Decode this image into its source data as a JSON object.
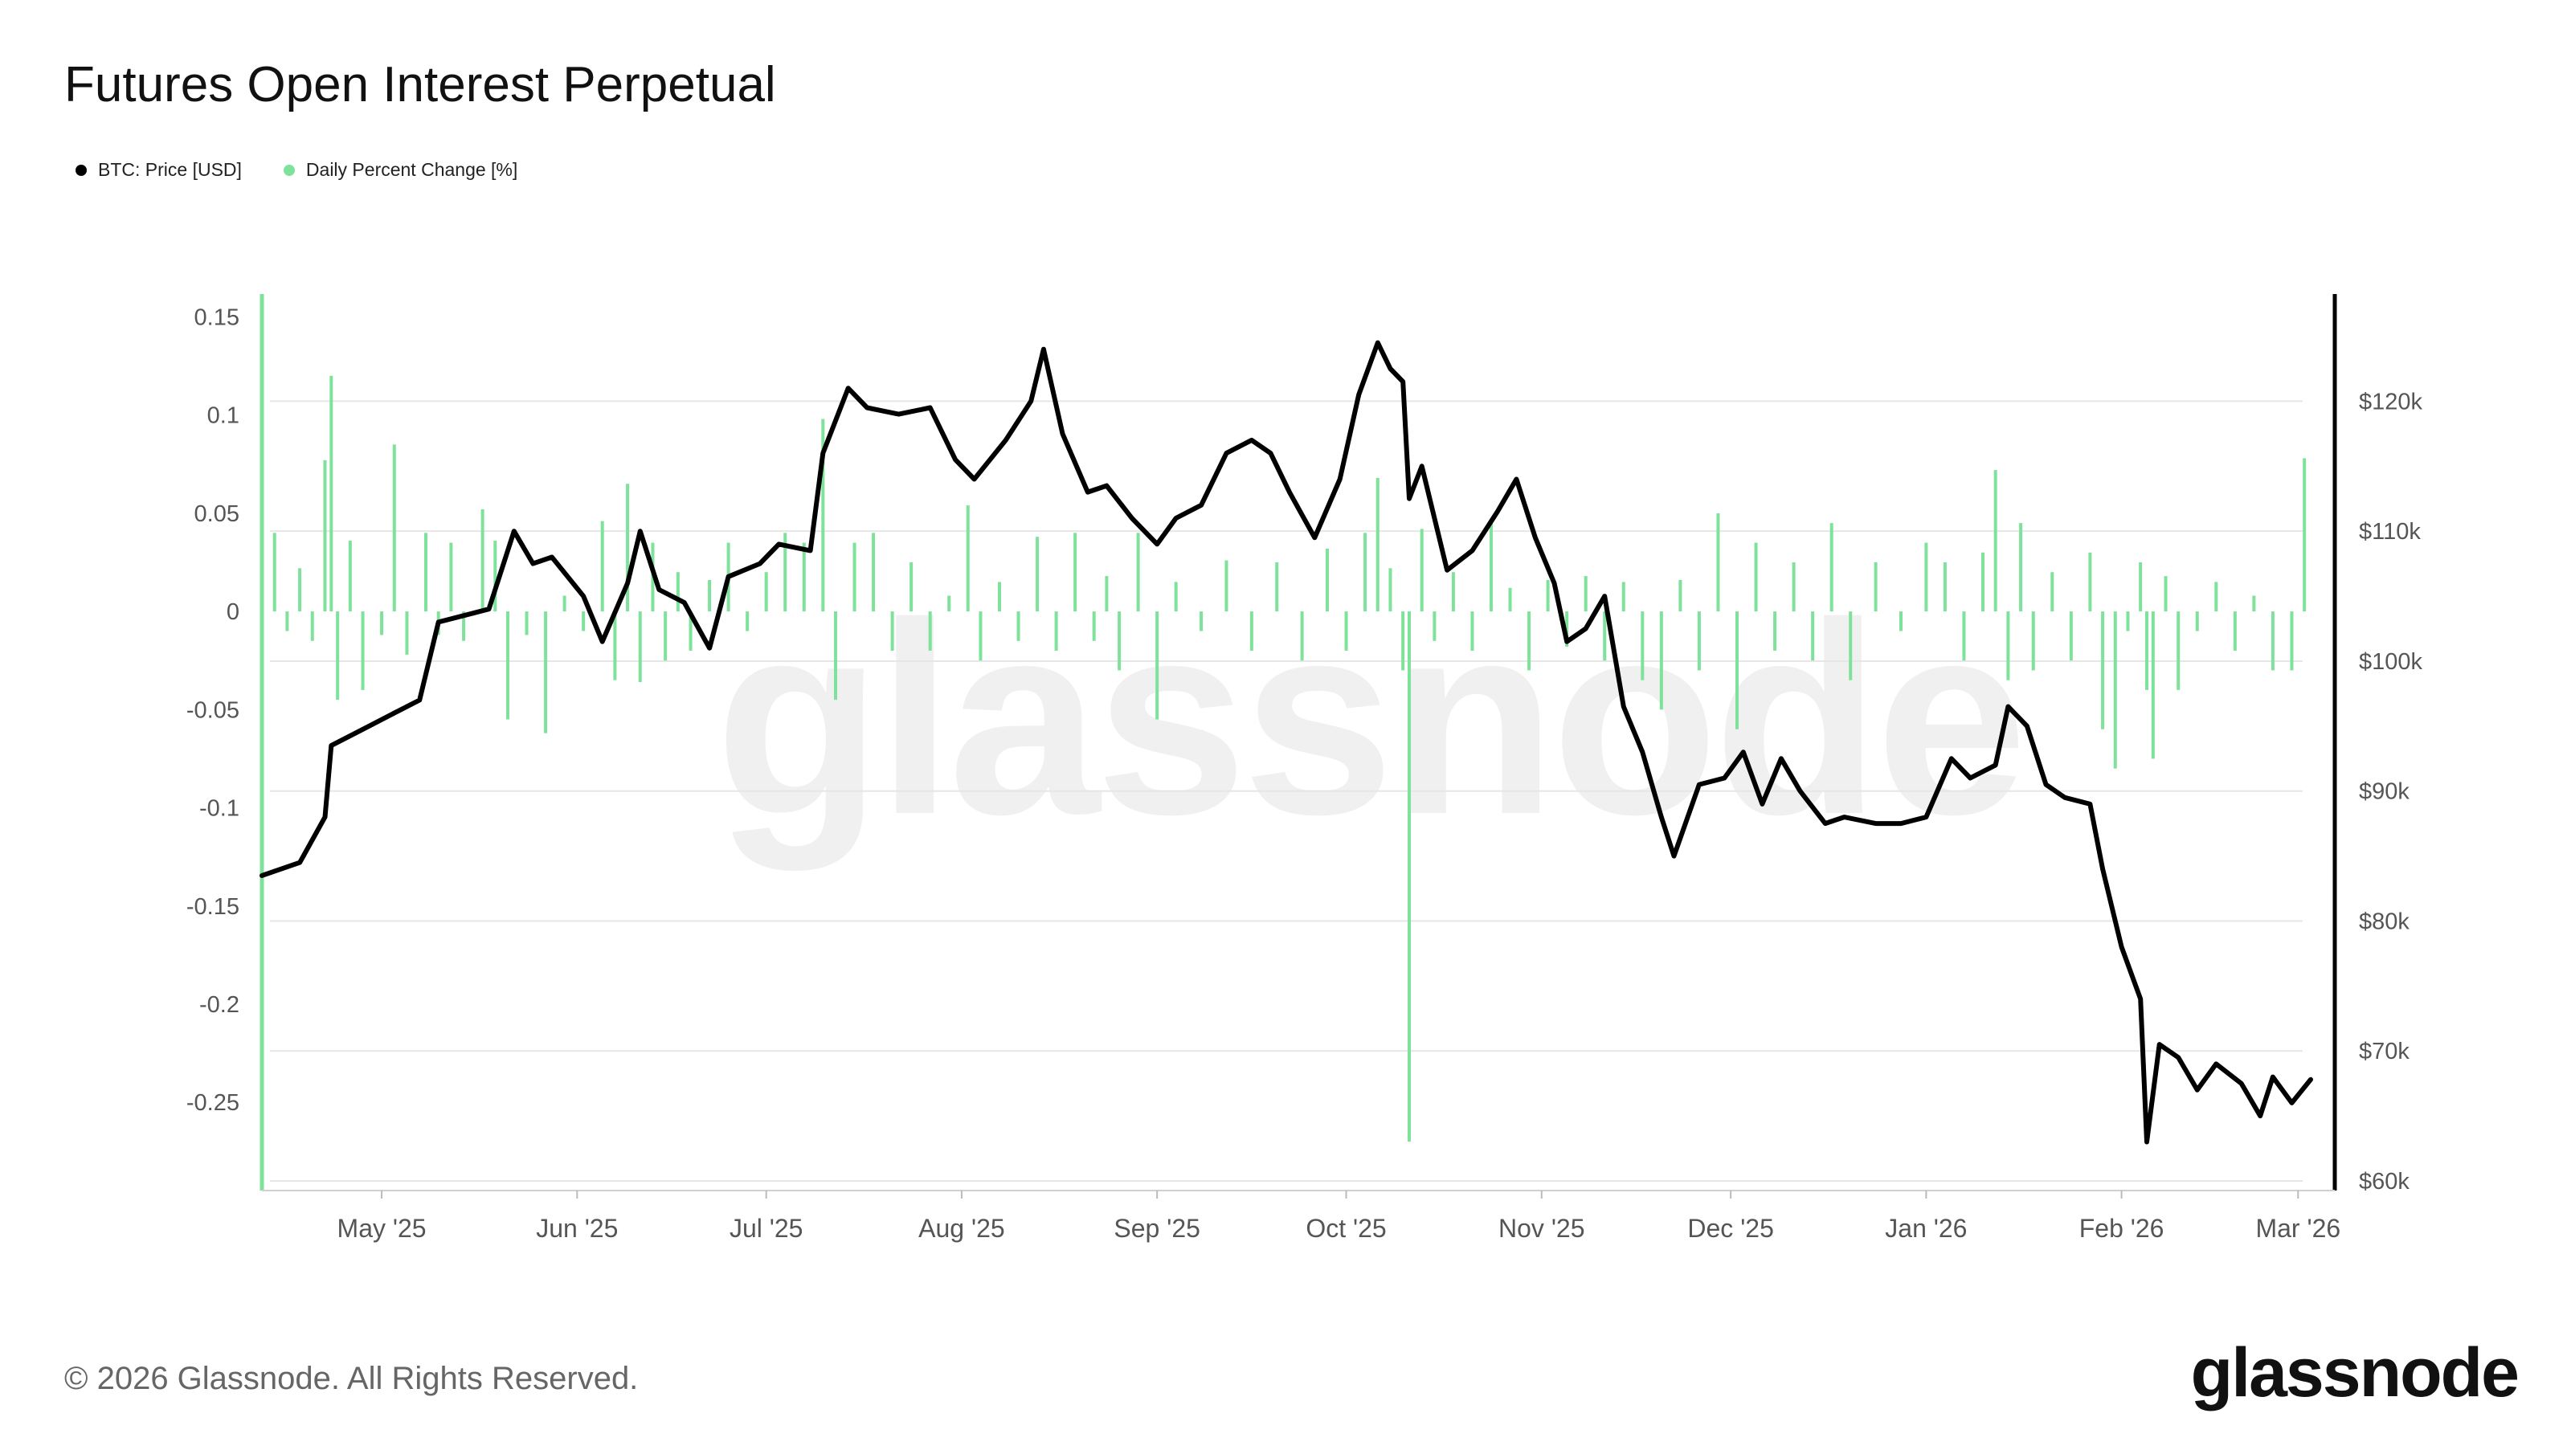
{
  "title": "Futures Open Interest Perpetual",
  "legend": [
    {
      "label": "BTC: Price [USD]",
      "color": "#000000"
    },
    {
      "label": "Daily Percent Change [%]",
      "color": "#7ee29a"
    }
  ],
  "footer": "© 2026 Glassnode. All Rights Reserved.",
  "watermark": "glassnode",
  "brand": "glassnode",
  "chart_data": {
    "type": "bar+line",
    "x_range": [
      "2025-04-12",
      "2026-03-03"
    ],
    "left_axis": {
      "ticks": [
        0.15,
        0.1,
        0.05,
        0,
        -0.05,
        -0.1,
        -0.15,
        -0.2,
        -0.25
      ],
      "tick_labels": [
        "0.15",
        "0.1",
        "0.05",
        "0",
        "-0.05",
        "-0.1",
        "-0.15",
        "-0.2",
        "-0.25"
      ],
      "ylim": [
        -0.29,
        0.16
      ]
    },
    "right_axis": {
      "ticks": [
        120000,
        110000,
        100000,
        90000,
        80000,
        70000,
        60000
      ],
      "tick_labels": [
        "$120k",
        "$110k",
        "$100k",
        "$90k",
        "$80k",
        "$70k",
        "$60k"
      ],
      "ylim": [
        60000,
        128000
      ]
    },
    "x_ticks": [
      {
        "date": "2025-05-01",
        "label": "May '25"
      },
      {
        "date": "2025-06-01",
        "label": "Jun '25"
      },
      {
        "date": "2025-07-01",
        "label": "Jul '25"
      },
      {
        "date": "2025-08-01",
        "label": "Aug '25"
      },
      {
        "date": "2025-09-01",
        "label": "Sep '25"
      },
      {
        "date": "2025-10-01",
        "label": "Oct '25"
      },
      {
        "date": "2025-11-01",
        "label": "Nov '25"
      },
      {
        "date": "2025-12-01",
        "label": "Dec '25"
      },
      {
        "date": "2026-01-01",
        "label": "Jan '26"
      },
      {
        "date": "2026-02-01",
        "label": "Feb '26"
      },
      {
        "date": "2026-03-01",
        "label": "Mar '26"
      }
    ],
    "series": [
      {
        "name": "BTC: Price [USD]",
        "color": "#000000",
        "points": [
          [
            "2025-04-12",
            83500
          ],
          [
            "2025-04-18",
            84500
          ],
          [
            "2025-04-22",
            88000
          ],
          [
            "2025-04-23",
            93500
          ],
          [
            "2025-04-27",
            94500
          ],
          [
            "2025-05-03",
            96000
          ],
          [
            "2025-05-07",
            97000
          ],
          [
            "2025-05-10",
            103000
          ],
          [
            "2025-05-14",
            103500
          ],
          [
            "2025-05-18",
            104000
          ],
          [
            "2025-05-22",
            110000
          ],
          [
            "2025-05-25",
            107500
          ],
          [
            "2025-05-28",
            108000
          ],
          [
            "2025-06-02",
            105000
          ],
          [
            "2025-06-05",
            101500
          ],
          [
            "2025-06-09",
            106000
          ],
          [
            "2025-06-11",
            110000
          ],
          [
            "2025-06-14",
            105500
          ],
          [
            "2025-06-18",
            104500
          ],
          [
            "2025-06-22",
            101000
          ],
          [
            "2025-06-25",
            106500
          ],
          [
            "2025-06-30",
            107500
          ],
          [
            "2025-07-03",
            109000
          ],
          [
            "2025-07-08",
            108500
          ],
          [
            "2025-07-10",
            116000
          ],
          [
            "2025-07-14",
            121000
          ],
          [
            "2025-07-17",
            119500
          ],
          [
            "2025-07-22",
            119000
          ],
          [
            "2025-07-27",
            119500
          ],
          [
            "2025-07-31",
            115500
          ],
          [
            "2025-08-03",
            114000
          ],
          [
            "2025-08-08",
            117000
          ],
          [
            "2025-08-12",
            120000
          ],
          [
            "2025-08-14",
            124000
          ],
          [
            "2025-08-17",
            117500
          ],
          [
            "2025-08-21",
            113000
          ],
          [
            "2025-08-24",
            113500
          ],
          [
            "2025-08-28",
            111000
          ],
          [
            "2025-09-01",
            109000
          ],
          [
            "2025-09-04",
            111000
          ],
          [
            "2025-09-08",
            112000
          ],
          [
            "2025-09-12",
            116000
          ],
          [
            "2025-09-16",
            117000
          ],
          [
            "2025-09-19",
            116000
          ],
          [
            "2025-09-22",
            113000
          ],
          [
            "2025-09-26",
            109500
          ],
          [
            "2025-09-30",
            114000
          ],
          [
            "2025-10-03",
            120500
          ],
          [
            "2025-10-06",
            124500
          ],
          [
            "2025-10-08",
            122500
          ],
          [
            "2025-10-10",
            121500
          ],
          [
            "2025-10-11",
            112500
          ],
          [
            "2025-10-13",
            115000
          ],
          [
            "2025-10-17",
            107000
          ],
          [
            "2025-10-21",
            108500
          ],
          [
            "2025-10-25",
            111500
          ],
          [
            "2025-10-28",
            114000
          ],
          [
            "2025-10-31",
            109500
          ],
          [
            "2025-11-03",
            106000
          ],
          [
            "2025-11-05",
            101500
          ],
          [
            "2025-11-08",
            102500
          ],
          [
            "2025-11-11",
            105000
          ],
          [
            "2025-11-14",
            96500
          ],
          [
            "2025-11-17",
            93000
          ],
          [
            "2025-11-20",
            88000
          ],
          [
            "2025-11-22",
            85000
          ],
          [
            "2025-11-26",
            90500
          ],
          [
            "2025-11-30",
            91000
          ],
          [
            "2025-12-03",
            93000
          ],
          [
            "2025-12-06",
            89000
          ],
          [
            "2025-12-09",
            92500
          ],
          [
            "2025-12-12",
            90000
          ],
          [
            "2025-12-16",
            87500
          ],
          [
            "2025-12-19",
            88000
          ],
          [
            "2025-12-24",
            87500
          ],
          [
            "2025-12-28",
            87500
          ],
          [
            "2026-01-01",
            88000
          ],
          [
            "2026-01-05",
            92500
          ],
          [
            "2026-01-08",
            91000
          ],
          [
            "2026-01-12",
            92000
          ],
          [
            "2026-01-14",
            96500
          ],
          [
            "2026-01-17",
            95000
          ],
          [
            "2026-01-20",
            90500
          ],
          [
            "2026-01-23",
            89500
          ],
          [
            "2026-01-27",
            89000
          ],
          [
            "2026-01-29",
            84000
          ],
          [
            "2026-02-01",
            78000
          ],
          [
            "2026-02-04",
            74000
          ],
          [
            "2026-02-05",
            63000
          ],
          [
            "2026-02-07",
            70500
          ],
          [
            "2026-02-10",
            69500
          ],
          [
            "2026-02-13",
            67000
          ],
          [
            "2026-02-16",
            69000
          ],
          [
            "2026-02-20",
            67500
          ],
          [
            "2026-02-23",
            65000
          ],
          [
            "2026-02-25",
            68000
          ],
          [
            "2026-02-28",
            66000
          ],
          [
            "2026-03-03",
            67800
          ]
        ]
      },
      {
        "name": "Daily Percent Change [%]",
        "color": "#7ee29a",
        "points": [
          [
            "2025-04-12",
            0.136
          ],
          [
            "2025-04-14",
            0.04
          ],
          [
            "2025-04-16",
            -0.01
          ],
          [
            "2025-04-18",
            0.022
          ],
          [
            "2025-04-20",
            -0.015
          ],
          [
            "2025-04-22",
            0.077
          ],
          [
            "2025-04-23",
            0.12
          ],
          [
            "2025-04-24",
            -0.045
          ],
          [
            "2025-04-26",
            0.036
          ],
          [
            "2025-04-28",
            -0.04
          ],
          [
            "2025-05-01",
            -0.012
          ],
          [
            "2025-05-03",
            0.085
          ],
          [
            "2025-05-05",
            -0.022
          ],
          [
            "2025-05-08",
            0.04
          ],
          [
            "2025-05-10",
            -0.012
          ],
          [
            "2025-05-12",
            0.035
          ],
          [
            "2025-05-14",
            -0.015
          ],
          [
            "2025-05-17",
            0.052
          ],
          [
            "2025-05-19",
            0.036
          ],
          [
            "2025-05-21",
            -0.055
          ],
          [
            "2025-05-24",
            -0.012
          ],
          [
            "2025-05-27",
            -0.062
          ],
          [
            "2025-05-30",
            0.008
          ],
          [
            "2025-06-02",
            -0.01
          ],
          [
            "2025-06-05",
            0.046
          ],
          [
            "2025-06-07",
            -0.035
          ],
          [
            "2025-06-09",
            0.065
          ],
          [
            "2025-06-11",
            -0.036
          ],
          [
            "2025-06-13",
            0.035
          ],
          [
            "2025-06-15",
            -0.025
          ],
          [
            "2025-06-17",
            0.02
          ],
          [
            "2025-06-19",
            -0.02
          ],
          [
            "2025-06-22",
            0.016
          ],
          [
            "2025-06-25",
            0.035
          ],
          [
            "2025-06-28",
            -0.01
          ],
          [
            "2025-07-01",
            0.02
          ],
          [
            "2025-07-04",
            0.04
          ],
          [
            "2025-07-07",
            0.035
          ],
          [
            "2025-07-10",
            0.098
          ],
          [
            "2025-07-12",
            -0.045
          ],
          [
            "2025-07-15",
            0.035
          ],
          [
            "2025-07-18",
            0.04
          ],
          [
            "2025-07-21",
            -0.02
          ],
          [
            "2025-07-24",
            0.025
          ],
          [
            "2025-07-27",
            -0.02
          ],
          [
            "2025-07-30",
            0.008
          ],
          [
            "2025-08-02",
            0.054
          ],
          [
            "2025-08-04",
            -0.025
          ],
          [
            "2025-08-07",
            0.015
          ],
          [
            "2025-08-10",
            -0.015
          ],
          [
            "2025-08-13",
            0.038
          ],
          [
            "2025-08-16",
            -0.02
          ],
          [
            "2025-08-19",
            0.04
          ],
          [
            "2025-08-22",
            -0.015
          ],
          [
            "2025-08-24",
            0.018
          ],
          [
            "2025-08-26",
            -0.03
          ],
          [
            "2025-08-29",
            0.04
          ],
          [
            "2025-09-01",
            -0.055
          ],
          [
            "2025-09-04",
            0.015
          ],
          [
            "2025-09-08",
            -0.01
          ],
          [
            "2025-09-12",
            0.026
          ],
          [
            "2025-09-16",
            -0.02
          ],
          [
            "2025-09-20",
            0.025
          ],
          [
            "2025-09-24",
            -0.025
          ],
          [
            "2025-09-28",
            0.032
          ],
          [
            "2025-10-01",
            -0.02
          ],
          [
            "2025-10-04",
            0.04
          ],
          [
            "2025-10-06",
            0.068
          ],
          [
            "2025-10-08",
            0.022
          ],
          [
            "2025-10-10",
            -0.03
          ],
          [
            "2025-10-11",
            -0.27
          ],
          [
            "2025-10-13",
            0.042
          ],
          [
            "2025-10-15",
            -0.015
          ],
          [
            "2025-10-18",
            0.02
          ],
          [
            "2025-10-21",
            -0.02
          ],
          [
            "2025-10-24",
            0.045
          ],
          [
            "2025-10-27",
            0.012
          ],
          [
            "2025-10-30",
            -0.03
          ],
          [
            "2025-11-02",
            0.016
          ],
          [
            "2025-11-05",
            -0.018
          ],
          [
            "2025-11-08",
            0.018
          ],
          [
            "2025-11-11",
            -0.025
          ],
          [
            "2025-11-14",
            0.015
          ],
          [
            "2025-11-17",
            -0.035
          ],
          [
            "2025-11-20",
            -0.05
          ],
          [
            "2025-11-23",
            0.016
          ],
          [
            "2025-11-26",
            -0.03
          ],
          [
            "2025-11-29",
            0.05
          ],
          [
            "2025-12-02",
            -0.06
          ],
          [
            "2025-12-05",
            0.035
          ],
          [
            "2025-12-08",
            -0.02
          ],
          [
            "2025-12-11",
            0.025
          ],
          [
            "2025-12-14",
            -0.025
          ],
          [
            "2025-12-17",
            0.045
          ],
          [
            "2025-12-20",
            -0.035
          ],
          [
            "2025-12-24",
            0.025
          ],
          [
            "2025-12-28",
            -0.01
          ],
          [
            "2026-01-01",
            0.035
          ],
          [
            "2026-01-04",
            0.025
          ],
          [
            "2026-01-07",
            -0.025
          ],
          [
            "2026-01-10",
            0.03
          ],
          [
            "2026-01-12",
            0.072
          ],
          [
            "2026-01-14",
            -0.035
          ],
          [
            "2026-01-16",
            0.045
          ],
          [
            "2026-01-18",
            -0.03
          ],
          [
            "2026-01-21",
            0.02
          ],
          [
            "2026-01-24",
            -0.025
          ],
          [
            "2026-01-27",
            0.03
          ],
          [
            "2026-01-29",
            -0.06
          ],
          [
            "2026-01-31",
            -0.08
          ],
          [
            "2026-02-02",
            -0.01
          ],
          [
            "2026-02-04",
            0.025
          ],
          [
            "2026-02-05",
            -0.04
          ],
          [
            "2026-02-06",
            -0.075
          ],
          [
            "2026-02-08",
            0.018
          ],
          [
            "2026-02-10",
            -0.04
          ],
          [
            "2026-02-13",
            -0.01
          ],
          [
            "2026-02-16",
            0.015
          ],
          [
            "2026-02-19",
            -0.02
          ],
          [
            "2026-02-22",
            0.008
          ],
          [
            "2026-02-25",
            -0.03
          ],
          [
            "2026-02-28",
            -0.03
          ],
          [
            "2026-03-02",
            0.078
          ]
        ]
      }
    ],
    "grid": true,
    "legend_position": "top-left"
  }
}
